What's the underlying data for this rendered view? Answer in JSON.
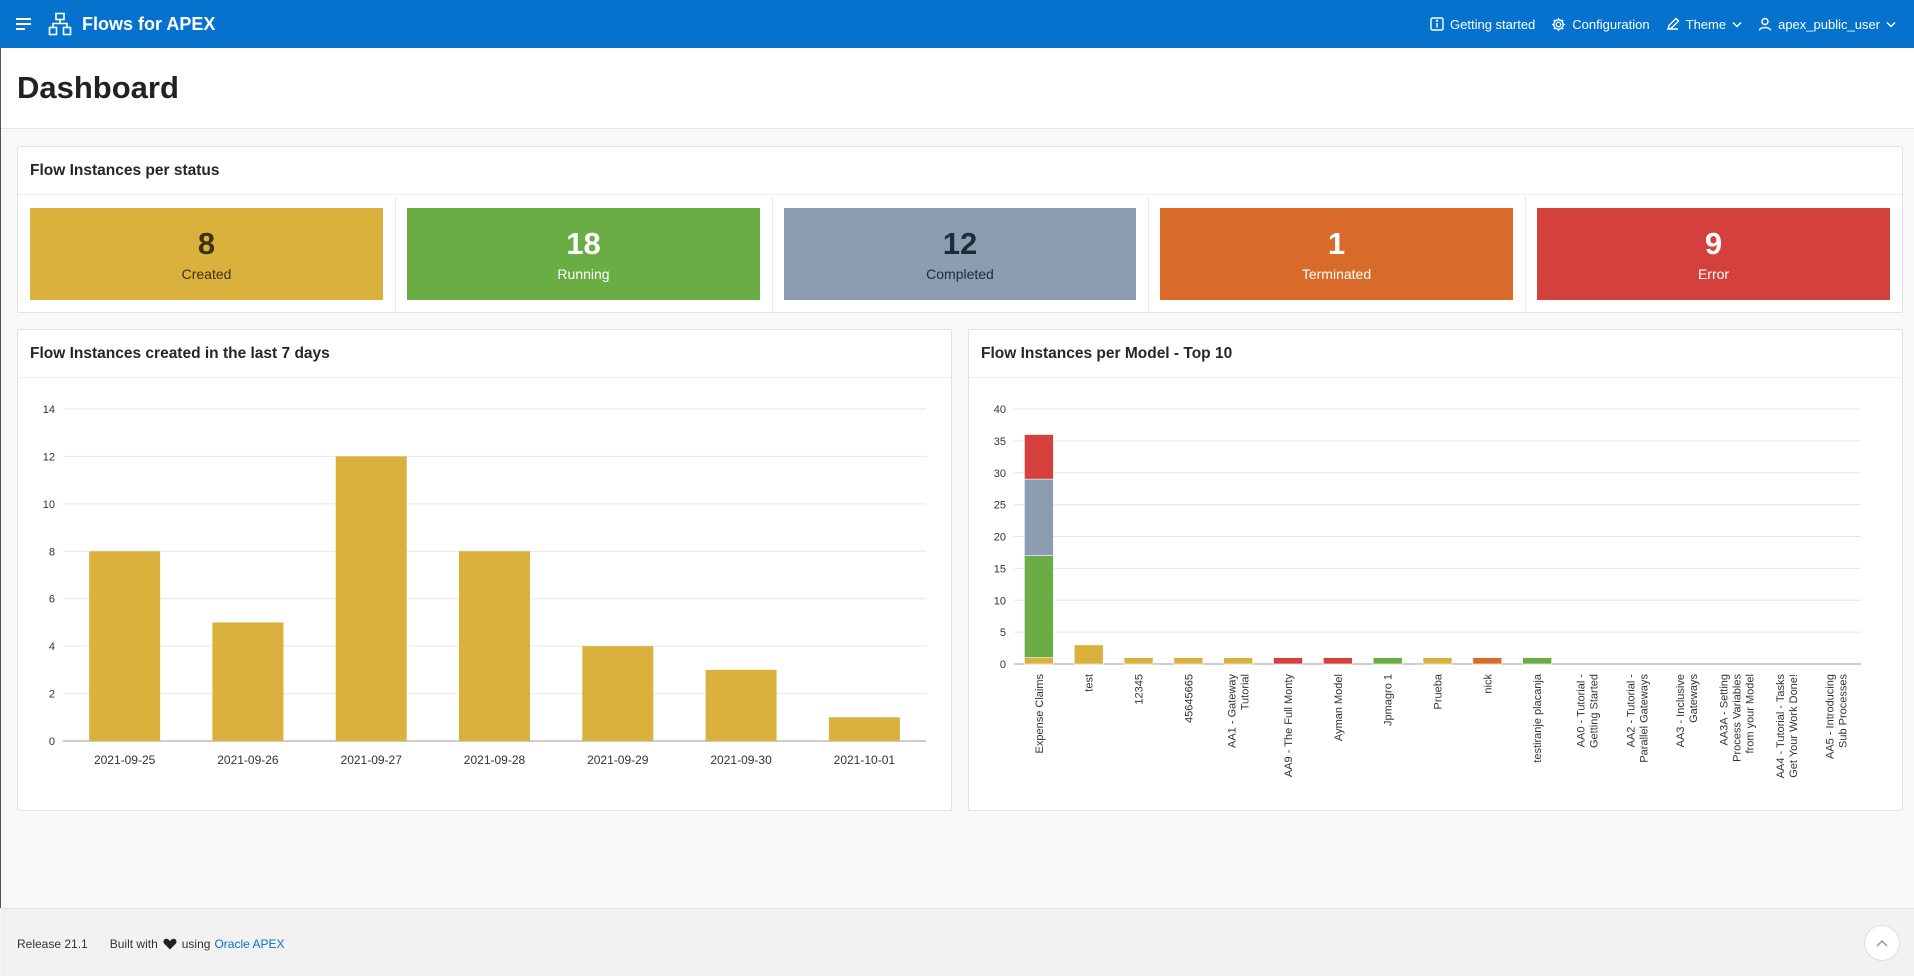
{
  "app": {
    "title": "Flows for APEX"
  },
  "nav": {
    "getting_started": "Getting started",
    "configuration": "Configuration",
    "theme": "Theme",
    "user": "apex_public_user"
  },
  "page": {
    "title": "Dashboard"
  },
  "status_region": {
    "title": "Flow Instances per status",
    "badges": [
      {
        "value": "8",
        "label": "Created",
        "color": "#dab13c",
        "text_color": "#3d3210"
      },
      {
        "value": "18",
        "label": "Running",
        "color": "#6aad45",
        "text_color": "#ffffff"
      },
      {
        "value": "12",
        "label": "Completed",
        "color": "#8d9db1",
        "text_color": "#1f2a38"
      },
      {
        "value": "1",
        "label": "Terminated",
        "color": "#d86b2a",
        "text_color": "#ffffff"
      },
      {
        "value": "9",
        "label": "Error",
        "color": "#d4413d",
        "text_color": "#ffffff"
      }
    ]
  },
  "region_7days": {
    "title": "Flow Instances created in the last 7 days"
  },
  "region_models": {
    "title": "Flow Instances per Model - Top 10"
  },
  "chart_data": [
    {
      "type": "bar",
      "title": "Flow Instances created in the last 7 days",
      "categories": [
        "2021-09-25",
        "2021-09-26",
        "2021-09-27",
        "2021-09-28",
        "2021-09-29",
        "2021-09-30",
        "2021-10-01"
      ],
      "values": [
        8,
        5,
        12,
        8,
        4,
        3,
        1
      ],
      "ylim": [
        0,
        14
      ],
      "yticks": [
        0,
        2,
        4,
        6,
        8,
        10,
        12,
        14
      ],
      "grid": true,
      "color": "#dab13c"
    },
    {
      "type": "bar",
      "stacked": true,
      "title": "Flow Instances per Model - Top 10",
      "categories": [
        [
          "Expense Claims"
        ],
        [
          "test"
        ],
        [
          "12345"
        ],
        [
          "45645665"
        ],
        [
          "AA1 - Gateway",
          "Tutorial"
        ],
        [
          "AA9 - The Full Monty"
        ],
        [
          "Ayman Model"
        ],
        [
          "Jpmagro 1"
        ],
        [
          "Prueba"
        ],
        [
          "nick"
        ],
        [
          "testiranje placanja"
        ],
        [
          "AA0 - Tutorial -",
          "Getting Started"
        ],
        [
          "AA2 - Tutorial -",
          "Parallel Gateways"
        ],
        [
          "AA3 - Inclusive",
          "Gateways"
        ],
        [
          "AA3A - Setting",
          "Process Variables",
          "from your Model"
        ],
        [
          "AA4 - Tutorial - Tasks",
          "Get Your Work Done!"
        ],
        [
          "AA5 - Introducing",
          "Sub Processes"
        ]
      ],
      "series": [
        {
          "color": "#dab13c",
          "values": [
            1,
            3,
            1,
            1,
            1,
            0,
            0,
            0,
            1,
            0,
            0,
            0,
            0,
            0,
            0,
            0,
            0
          ]
        },
        {
          "color": "#6aad45",
          "values": [
            16,
            0,
            0,
            0,
            0,
            0,
            0,
            1,
            0,
            0,
            1,
            0,
            0,
            0,
            0,
            0,
            0
          ]
        },
        {
          "color": "#8d9db1",
          "values": [
            12,
            0,
            0,
            0,
            0,
            0,
            0,
            0,
            0,
            0,
            0,
            0,
            0,
            0,
            0,
            0,
            0
          ]
        },
        {
          "color": "#d86b2a",
          "values": [
            0,
            0,
            0,
            0,
            0,
            0,
            0,
            0,
            0,
            1,
            0,
            0,
            0,
            0,
            0,
            0,
            0
          ]
        },
        {
          "color": "#d4413d",
          "values": [
            7,
            0,
            0,
            0,
            0,
            1,
            1,
            0,
            0,
            0,
            0,
            0,
            0,
            0,
            0,
            0,
            0
          ]
        }
      ],
      "ylim": [
        0,
        40
      ],
      "yticks": [
        0,
        5,
        10,
        15,
        20,
        25,
        30,
        35,
        40
      ],
      "grid": true
    }
  ],
  "footer": {
    "release": "Release 21.1",
    "built_with": "Built with",
    "using": "using",
    "link": "Oracle APEX"
  }
}
